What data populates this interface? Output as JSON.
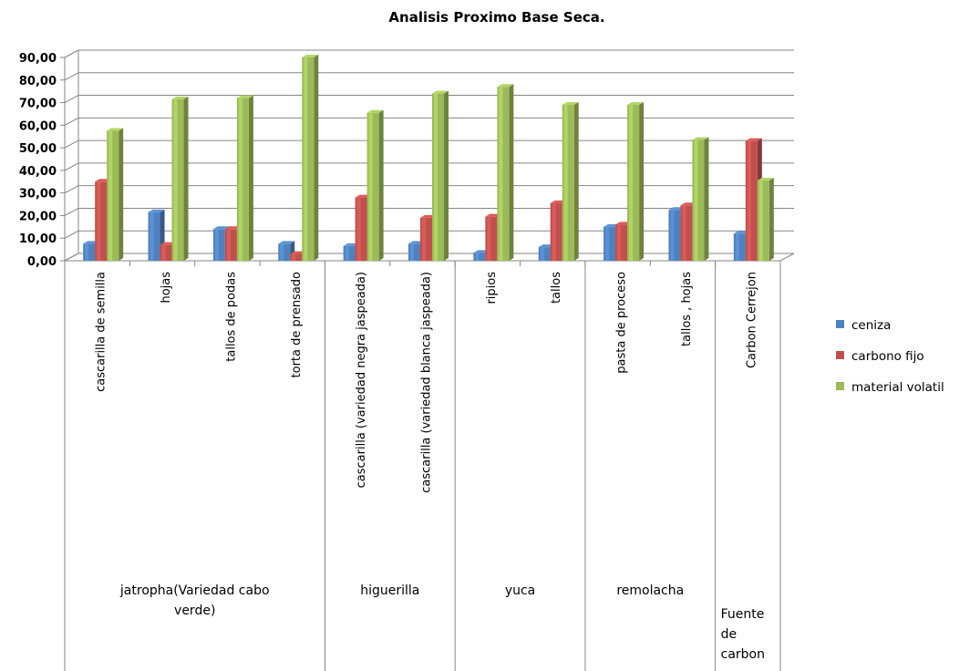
{
  "chart_data": {
    "type": "bar",
    "title": "Analisis  Proximo Base Seca.",
    "ylim": [
      0,
      90
    ],
    "yticks": [
      "0,00",
      "10,00",
      "20,00",
      "30,00",
      "40,00",
      "50,00",
      "60,00",
      "70,00",
      "80,00",
      "90,00"
    ],
    "categories": [
      "cascarilla de semilla",
      "hojas",
      "tallos de podas",
      "torta de prensado",
      "cascarilla  (variedad negra jaspeada)",
      "cascarilla (variedad blanca jaspeada)",
      "ripios",
      "tallos",
      "pasta de proceso",
      "tallos , hojas",
      "Carbon  Cerrejon"
    ],
    "groups": [
      {
        "lines": [
          "jatropha(Variedad cabo",
          "verde)"
        ],
        "span": [
          0,
          3
        ]
      },
      {
        "lines": [
          "higuerilla"
        ],
        "span": [
          4,
          5
        ]
      },
      {
        "lines": [
          "yuca"
        ],
        "span": [
          6,
          7
        ]
      },
      {
        "lines": [
          "remolacha"
        ],
        "span": [
          8,
          9
        ]
      },
      {
        "lines": [
          "Fuente",
          "de",
          "carbon"
        ],
        "span": [
          10,
          10
        ]
      }
    ],
    "series": [
      {
        "name": "ceniza",
        "color": "#4F81BD",
        "values": [
          7.5,
          21.5,
          14.0,
          7.5,
          6.5,
          7.5,
          3.5,
          6.0,
          15.0,
          22.5,
          12.0
        ]
      },
      {
        "name": "carbono fijo",
        "color": "#C0504D",
        "values": [
          35.0,
          7.0,
          14.0,
          3.0,
          28.0,
          19.0,
          19.5,
          25.5,
          16.0,
          24.5,
          53.0
        ]
      },
      {
        "name": "material volatil",
        "color": "#9BBB59",
        "values": [
          57.5,
          71.5,
          72.0,
          90.0,
          65.5,
          74.0,
          77.0,
          69.0,
          69.0,
          53.5,
          35.5
        ]
      }
    ],
    "grid": true,
    "legend_position": "right"
  }
}
